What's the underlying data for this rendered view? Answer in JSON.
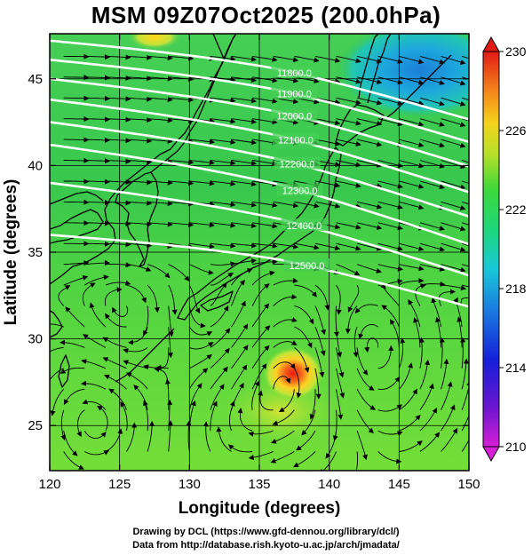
{
  "title": "MSM 09Z07Oct2025 (200.0hPa)",
  "credits": {
    "line1": "Drawing by DCL (https://www.gfd-dennou.org/library/dcl/)",
    "line2": "Data from http://database.rish.kyoto-u.ac.jp/arch/jmadata/"
  },
  "axes": {
    "xlabel": "Longitude (degrees)",
    "ylabel": "Latitude  (degrees)",
    "xlim": [
      120,
      150
    ],
    "ylim": [
      22.4,
      47.6
    ],
    "xticks": [
      {
        "value": 120,
        "label": "120"
      },
      {
        "value": 125,
        "label": "125"
      },
      {
        "value": 130,
        "label": "130"
      },
      {
        "value": 135,
        "label": "135"
      },
      {
        "value": 140,
        "label": "140"
      },
      {
        "value": 145,
        "label": "145"
      },
      {
        "value": 150,
        "label": "150"
      }
    ],
    "yticks": [
      {
        "value": 25,
        "label": "25"
      },
      {
        "value": 30,
        "label": "30"
      },
      {
        "value": 35,
        "label": "35"
      },
      {
        "value": 40,
        "label": "40"
      },
      {
        "value": 45,
        "label": "45"
      }
    ],
    "grid": true
  },
  "colorbar": {
    "min": 210,
    "max": 230,
    "labels": [
      {
        "value": 230,
        "label": "230"
      },
      {
        "value": 226,
        "label": "226"
      },
      {
        "value": 222,
        "label": "222"
      },
      {
        "value": 218,
        "label": "218"
      },
      {
        "value": 214,
        "label": "214"
      },
      {
        "value": 210,
        "label": "210"
      }
    ]
  },
  "contours": [
    {
      "label": "11800.0",
      "lat_at_120": 47.2,
      "lat_at_150": 43.2,
      "label_lon": 137.5
    },
    {
      "label": "11900.0",
      "lat_at_120": 46.1,
      "lat_at_150": 41.9,
      "label_lon": 137.5
    },
    {
      "label": "12000.0",
      "lat_at_120": 45.0,
      "lat_at_150": 40.5,
      "label_lon": 137.5
    },
    {
      "label": "12100.0",
      "lat_at_120": 43.8,
      "lat_at_150": 39.0,
      "label_lon": 137.6
    },
    {
      "label": "12200.0",
      "lat_at_120": 42.5,
      "lat_at_150": 37.6,
      "label_lon": 137.7
    },
    {
      "label": "12300.0",
      "lat_at_120": 41.2,
      "lat_at_150": 36.0,
      "label_lon": 137.9
    },
    {
      "label": "12400.0",
      "lat_at_120": 39.0,
      "lat_at_150": 34.2,
      "label_lon": 138.2
    },
    {
      "label": "12500.0",
      "lat_at_120": 36.0,
      "lat_at_150": 32.4,
      "label_lon": 138.4
    }
  ],
  "features": {
    "warm_core_lon": 137.4,
    "warm_core_lat": 28.0,
    "cyclone_west_lon": 123.2,
    "cyclone_west_lat": 25.3,
    "cyclone_east_lon": 142.0,
    "cyclone_east_lat": 29.2,
    "cold_region_lon": 146.5,
    "cold_region_lat": 45.5
  },
  "colors": {
    "background_green": "#58d93e",
    "jet_green": "#2fc84a",
    "cold_cyan": "#1fb5d8",
    "cold_blue": "#1b8cd8",
    "warm_yellow": "#ffe020",
    "warm_red": "#e81a10",
    "contour_line": "#ffffff",
    "coastline": "#000000",
    "vector": "#000000"
  }
}
